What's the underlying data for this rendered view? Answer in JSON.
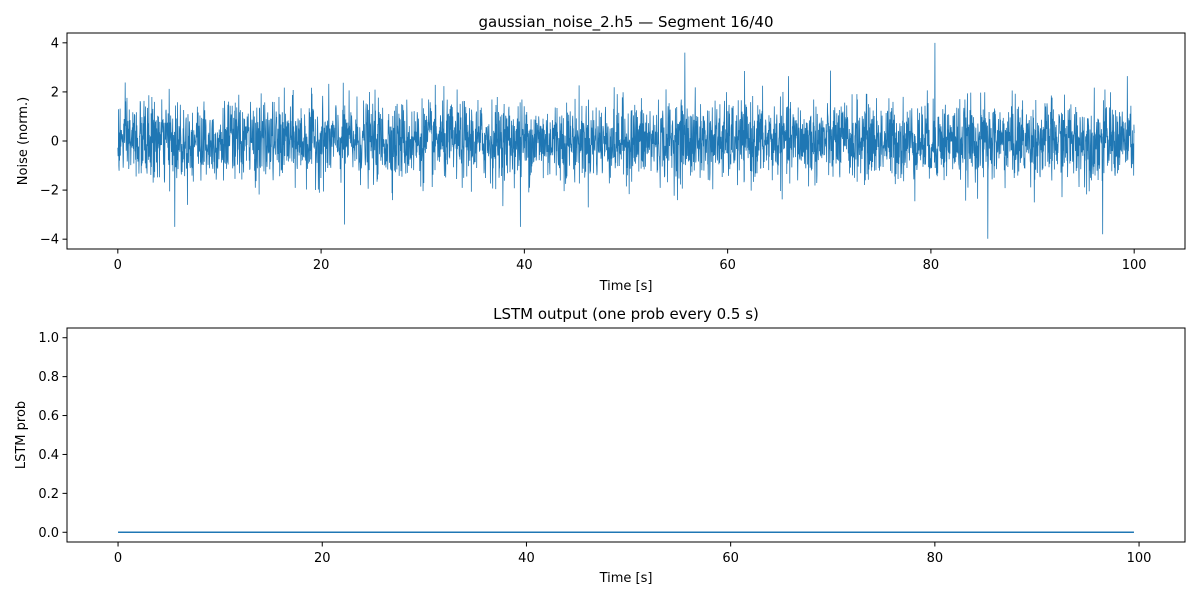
{
  "chart_data": [
    {
      "type": "line",
      "title": "gaussian_noise_2.h5 — Segment 16/40",
      "xlabel": "Time [s]",
      "ylabel": "Noise (norm.)",
      "xlim": [
        -5,
        105
      ],
      "ylim": [
        -4.4,
        4.4
      ],
      "xticks": [
        0,
        20,
        40,
        60,
        80,
        100
      ],
      "yticks": [
        -4,
        -2,
        0,
        2,
        4
      ],
      "xtick_labels": [
        "0",
        "20",
        "40",
        "60",
        "80",
        "100"
      ],
      "ytick_labels": [
        "−4",
        "−2",
        "0",
        "2",
        "4"
      ],
      "grid": false,
      "color": "#1f77b4",
      "series": [
        {
          "x_start": 0,
          "x_end": 100,
          "distribution": "gaussian",
          "mean": 0,
          "std": 0.8,
          "approx_min": -3.98,
          "approx_max": 4.0,
          "notable_peaks": [
            {
              "x": 5.6,
              "y": -3.5
            },
            {
              "x": 22.3,
              "y": -3.4
            },
            {
              "x": 39.6,
              "y": -3.5
            },
            {
              "x": 55.8,
              "y": 3.6
            },
            {
              "x": 80.4,
              "y": 4.0
            },
            {
              "x": 85.6,
              "y": -3.98
            },
            {
              "x": 96.9,
              "y": -3.8
            }
          ]
        }
      ]
    },
    {
      "type": "line",
      "title": "LSTM output (one prob every 0.5 s)",
      "xlabel": "Time [s]",
      "ylabel": "LSTM prob",
      "xlim": [
        -5,
        104.5
      ],
      "ylim": [
        -0.05,
        1.05
      ],
      "xticks": [
        0,
        20,
        40,
        60,
        80,
        100
      ],
      "yticks": [
        0.0,
        0.2,
        0.4,
        0.6,
        0.8,
        1.0
      ],
      "xtick_labels": [
        "0",
        "20",
        "40",
        "60",
        "80",
        "100"
      ],
      "ytick_labels": [
        "0.0",
        "0.2",
        "0.4",
        "0.6",
        "0.8",
        "1.0"
      ],
      "grid": false,
      "color": "#1f77b4",
      "series": [
        {
          "x_start": 0,
          "x_end": 99.5,
          "x_step": 0.5,
          "constant_value": 0.0
        }
      ]
    }
  ]
}
